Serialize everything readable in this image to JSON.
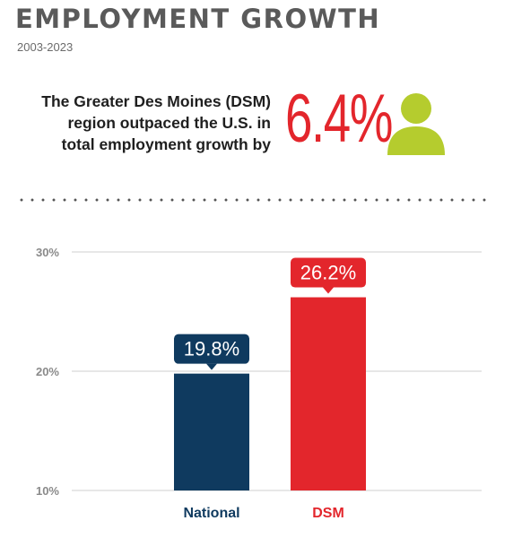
{
  "header": {
    "title": "EMPLOYMENT GROWTH",
    "subtitle": "2003-2023"
  },
  "callout": {
    "lines": [
      "The Greater Des Moines (DSM)",
      "region outpaced the U.S. in",
      "total employment growth by"
    ],
    "value": "6.4%",
    "accent_color": "#e3262c",
    "icon": "person-icon",
    "icon_color": "#b5cc2e"
  },
  "chart_data": {
    "type": "bar",
    "categories": [
      "National",
      "DSM"
    ],
    "values": [
      19.8,
      26.2
    ],
    "data_labels": [
      "19.8%",
      "26.2%"
    ],
    "colors": [
      "#0f3a5f",
      "#e3262c"
    ],
    "yticks": [
      "30%",
      "20%",
      "10%"
    ],
    "ytick_values": [
      30,
      20,
      10
    ],
    "ylim": [
      10,
      30
    ],
    "grid": true
  }
}
